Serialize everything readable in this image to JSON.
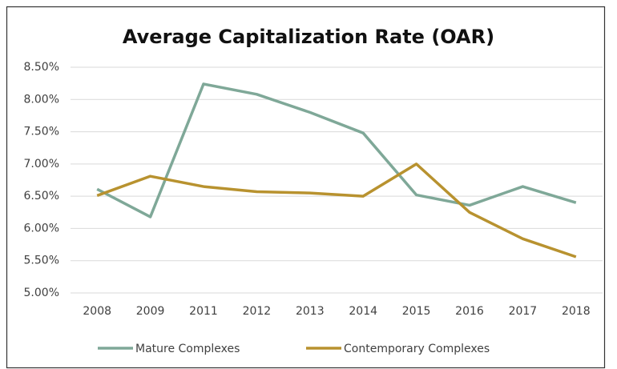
{
  "chart_data": {
    "type": "line",
    "title": "Average Capitalization Rate (OAR)",
    "categories": [
      "2008",
      "2009",
      "2011",
      "2012",
      "2013",
      "2014",
      "2015",
      "2016",
      "2017",
      "2018"
    ],
    "series": [
      {
        "name": "Mature Complexes",
        "color": "#7fa898",
        "values": [
          6.61,
          6.18,
          8.24,
          8.08,
          7.8,
          7.48,
          6.52,
          6.36,
          6.65,
          6.4
        ]
      },
      {
        "name": "Contemporary Complexes",
        "color": "#b8922f",
        "values": [
          6.51,
          6.81,
          6.65,
          6.57,
          6.55,
          6.5,
          7.0,
          6.25,
          5.84,
          5.56
        ]
      }
    ],
    "ylim": [
      5.0,
      8.5
    ],
    "yticks": [
      {
        "value": 5.0,
        "label": "5.00%"
      },
      {
        "value": 5.5,
        "label": "5.50%"
      },
      {
        "value": 6.0,
        "label": "6.00%"
      },
      {
        "value": 6.5,
        "label": "6.50%"
      },
      {
        "value": 7.0,
        "label": "7.00%"
      },
      {
        "value": 7.5,
        "label": "7.50%"
      },
      {
        "value": 8.0,
        "label": "8.00%"
      },
      {
        "value": 8.5,
        "label": "8.50%"
      }
    ],
    "grid": true,
    "legend": "bottom"
  }
}
